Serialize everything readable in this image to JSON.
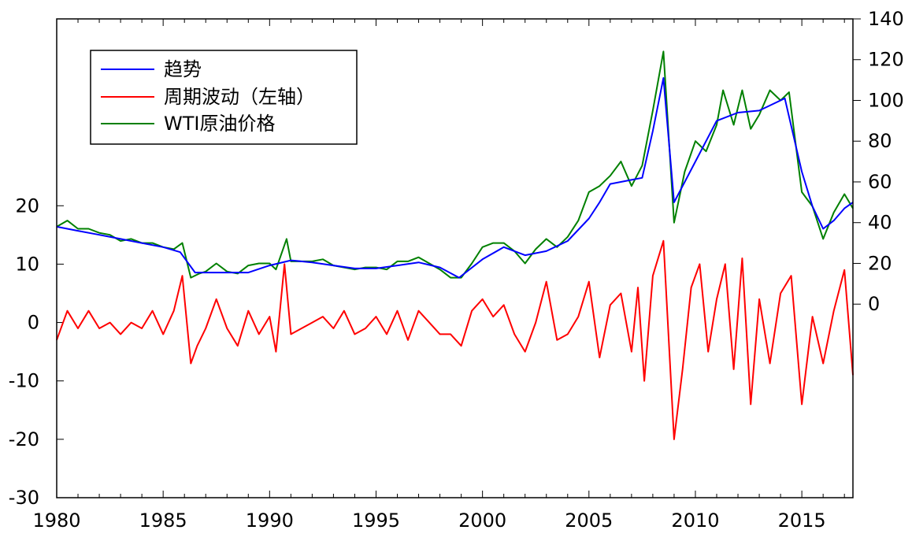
{
  "chart_data": {
    "type": "line",
    "title": "",
    "xlabel": "",
    "ylabel_left": "",
    "ylabel_right": "",
    "grid": false,
    "legend_placement": "top-left",
    "x_axis": {
      "range": [
        1980,
        2017.4
      ],
      "tick_labels": [
        "1980",
        "1985",
        "1990",
        "1995",
        "2000",
        "2005",
        "2010",
        "2015"
      ],
      "tick_values": [
        1980,
        1985,
        1990,
        1995,
        2000,
        2005,
        2010,
        2015
      ]
    },
    "left_axis": {
      "range": [
        -30,
        52
      ],
      "tick_values": [
        -30,
        -20,
        -10,
        0,
        10,
        20
      ],
      "tick_labels": [
        "-30",
        "-20",
        "-10",
        "0",
        "10",
        "20"
      ]
    },
    "right_axis": {
      "range": [
        -95,
        140
      ],
      "tick_values": [
        0,
        20,
        40,
        60,
        80,
        100,
        120,
        140
      ],
      "tick_labels": [
        "0",
        "20",
        "40",
        "60",
        "80",
        "100",
        "120",
        "140"
      ]
    },
    "series": [
      {
        "name": "趋势",
        "axis": "right",
        "color": "#0000ff",
        "points": [
          [
            1980,
            38
          ],
          [
            1981,
            36
          ],
          [
            1982,
            34
          ],
          [
            1983,
            32
          ],
          [
            1984,
            30
          ],
          [
            1985,
            28
          ],
          [
            1985.8,
            25.5
          ],
          [
            1986.5,
            15.5
          ],
          [
            1988,
            15.5
          ],
          [
            1989,
            15.5
          ],
          [
            1990,
            19
          ],
          [
            1991,
            21.5
          ],
          [
            1992,
            20.5
          ],
          [
            1993,
            19
          ],
          [
            1994,
            17.5
          ],
          [
            1995,
            17.5
          ],
          [
            1996,
            19
          ],
          [
            1997,
            20.5
          ],
          [
            1998,
            18
          ],
          [
            1998.9,
            13
          ],
          [
            2000,
            22
          ],
          [
            2001,
            28
          ],
          [
            2002,
            24
          ],
          [
            2003,
            26
          ],
          [
            2004,
            31
          ],
          [
            2005,
            42
          ],
          [
            2005.5,
            50
          ],
          [
            2006,
            59
          ],
          [
            2007,
            61
          ],
          [
            2007.5,
            62
          ],
          [
            2008,
            85
          ],
          [
            2008.5,
            111
          ],
          [
            2009,
            50
          ],
          [
            2010,
            70
          ],
          [
            2011,
            90
          ],
          [
            2012,
            94
          ],
          [
            2013,
            95
          ],
          [
            2014,
            100
          ],
          [
            2014.2,
            101
          ],
          [
            2015,
            65
          ],
          [
            2015.5,
            48
          ],
          [
            2016,
            37
          ],
          [
            2016.5,
            41
          ],
          [
            2017,
            47
          ],
          [
            2017.4,
            50
          ]
        ]
      },
      {
        "name": "周期波动（左轴）",
        "axis": "left",
        "color": "#ff0000",
        "points": [
          [
            1980,
            -3
          ],
          [
            1980.5,
            2
          ],
          [
            1981,
            -1
          ],
          [
            1981.5,
            2
          ],
          [
            1982,
            -1
          ],
          [
            1982.5,
            0
          ],
          [
            1983,
            -2
          ],
          [
            1983.5,
            0
          ],
          [
            1984,
            -1
          ],
          [
            1984.5,
            2
          ],
          [
            1985,
            -2
          ],
          [
            1985.5,
            2
          ],
          [
            1985.9,
            8
          ],
          [
            1986.3,
            -7
          ],
          [
            1986.6,
            -4
          ],
          [
            1987,
            -1
          ],
          [
            1987.5,
            4
          ],
          [
            1988,
            -1
          ],
          [
            1988.5,
            -4
          ],
          [
            1989,
            2
          ],
          [
            1989.5,
            -2
          ],
          [
            1990,
            1
          ],
          [
            1990.3,
            -5
          ],
          [
            1990.7,
            10
          ],
          [
            1991,
            -2
          ],
          [
            1991.5,
            -1
          ],
          [
            1992,
            0
          ],
          [
            1992.5,
            1
          ],
          [
            1993,
            -1
          ],
          [
            1993.5,
            2
          ],
          [
            1994,
            -2
          ],
          [
            1994.5,
            -1
          ],
          [
            1995,
            1
          ],
          [
            1995.5,
            -2
          ],
          [
            1996,
            2
          ],
          [
            1996.5,
            -3
          ],
          [
            1997,
            2
          ],
          [
            1997.5,
            0
          ],
          [
            1998,
            -2
          ],
          [
            1998.5,
            -2
          ],
          [
            1999,
            -4
          ],
          [
            1999.5,
            2
          ],
          [
            2000,
            4
          ],
          [
            2000.5,
            1
          ],
          [
            2001,
            3
          ],
          [
            2001.5,
            -2
          ],
          [
            2002,
            -5
          ],
          [
            2002.5,
            0
          ],
          [
            2003,
            7
          ],
          [
            2003.5,
            -3
          ],
          [
            2004,
            -2
          ],
          [
            2004.5,
            1
          ],
          [
            2005,
            7
          ],
          [
            2005.5,
            -6
          ],
          [
            2006,
            3
          ],
          [
            2006.5,
            5
          ],
          [
            2007,
            -5
          ],
          [
            2007.3,
            6
          ],
          [
            2007.6,
            -10
          ],
          [
            2008,
            8
          ],
          [
            2008.5,
            14
          ],
          [
            2009,
            -20
          ],
          [
            2009.4,
            -8
          ],
          [
            2009.8,
            6
          ],
          [
            2010.2,
            10
          ],
          [
            2010.6,
            -5
          ],
          [
            2011,
            4
          ],
          [
            2011.4,
            10
          ],
          [
            2011.8,
            -8
          ],
          [
            2012.2,
            11
          ],
          [
            2012.6,
            -14
          ],
          [
            2013,
            4
          ],
          [
            2013.5,
            -7
          ],
          [
            2014,
            5
          ],
          [
            2014.5,
            8
          ],
          [
            2015,
            -14
          ],
          [
            2015.5,
            1
          ],
          [
            2016,
            -7
          ],
          [
            2016.5,
            2
          ],
          [
            2017,
            9
          ],
          [
            2017.4,
            -9
          ]
        ]
      },
      {
        "name": "WTI原油价格",
        "axis": "right",
        "color": "#008000",
        "points": [
          [
            1980,
            38
          ],
          [
            1980.5,
            41
          ],
          [
            1981,
            37
          ],
          [
            1981.5,
            37
          ],
          [
            1982,
            35
          ],
          [
            1982.5,
            34
          ],
          [
            1983,
            31
          ],
          [
            1983.5,
            32
          ],
          [
            1984,
            30
          ],
          [
            1984.5,
            30
          ],
          [
            1985,
            28
          ],
          [
            1985.5,
            27
          ],
          [
            1985.9,
            30
          ],
          [
            1986.3,
            13
          ],
          [
            1986.7,
            15
          ],
          [
            1987,
            16
          ],
          [
            1987.5,
            20
          ],
          [
            1988,
            16
          ],
          [
            1988.5,
            15
          ],
          [
            1989,
            19
          ],
          [
            1989.5,
            20
          ],
          [
            1990,
            20
          ],
          [
            1990.3,
            17
          ],
          [
            1990.8,
            32
          ],
          [
            1991,
            21
          ],
          [
            1991.5,
            21
          ],
          [
            1992,
            21
          ],
          [
            1992.5,
            22
          ],
          [
            1993,
            19
          ],
          [
            1993.5,
            18
          ],
          [
            1994,
            17
          ],
          [
            1994.5,
            18
          ],
          [
            1995,
            18
          ],
          [
            1995.5,
            17
          ],
          [
            1996,
            21
          ],
          [
            1996.5,
            21
          ],
          [
            1997,
            23
          ],
          [
            1997.5,
            20
          ],
          [
            1998,
            17
          ],
          [
            1998.5,
            13
          ],
          [
            1999,
            13
          ],
          [
            1999.5,
            20
          ],
          [
            2000,
            28
          ],
          [
            2000.5,
            30
          ],
          [
            2001,
            30
          ],
          [
            2001.5,
            26
          ],
          [
            2002,
            20
          ],
          [
            2002.5,
            27
          ],
          [
            2003,
            32
          ],
          [
            2003.5,
            28
          ],
          [
            2004,
            33
          ],
          [
            2004.5,
            41
          ],
          [
            2005,
            55
          ],
          [
            2005.5,
            58
          ],
          [
            2006,
            63
          ],
          [
            2006.5,
            70
          ],
          [
            2007,
            58
          ],
          [
            2007.5,
            68
          ],
          [
            2008,
            95
          ],
          [
            2008.5,
            124
          ],
          [
            2009,
            40
          ],
          [
            2009.5,
            65
          ],
          [
            2010,
            80
          ],
          [
            2010.5,
            75
          ],
          [
            2011,
            88
          ],
          [
            2011.3,
            105
          ],
          [
            2011.8,
            88
          ],
          [
            2012.2,
            105
          ],
          [
            2012.6,
            86
          ],
          [
            2013,
            93
          ],
          [
            2013.5,
            105
          ],
          [
            2014,
            100
          ],
          [
            2014.4,
            104
          ],
          [
            2015,
            55
          ],
          [
            2015.5,
            48
          ],
          [
            2016,
            32
          ],
          [
            2016.5,
            45
          ],
          [
            2017,
            54
          ],
          [
            2017.4,
            47
          ]
        ]
      }
    ]
  }
}
